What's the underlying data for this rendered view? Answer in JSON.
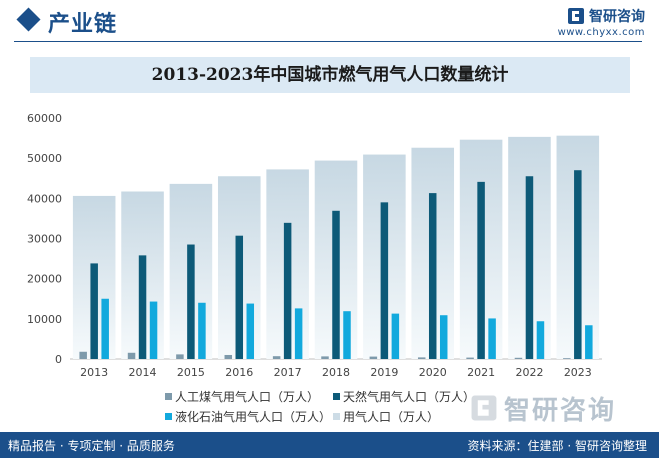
{
  "header": {
    "section_title": "产业链",
    "brand_name": "智研咨询",
    "brand_url": "www.chyxx.com",
    "logo_icon": "chyxx-logo-icon"
  },
  "watermark": {
    "text": "智研咨询"
  },
  "footer": {
    "left": "精品报告 · 专项定制 · 品质服务",
    "right": "资料来源：住建部 · 智研咨询整理"
  },
  "colors": {
    "brand": "#1b4f8a",
    "artificial_gas": "#7e9aab",
    "natural_gas": "#0d5a78",
    "lpg": "#12a9dd",
    "gas_population": "#cddce6"
  },
  "chart_data": {
    "type": "bar",
    "title": "2013-2023年中国城市燃气用气人口数量统计",
    "xlabel": "",
    "ylabel": "",
    "ylim": [
      0,
      60000
    ],
    "yticks": [
      0,
      10000,
      20000,
      30000,
      40000,
      50000,
      60000
    ],
    "categories": [
      "2013",
      "2014",
      "2015",
      "2016",
      "2017",
      "2018",
      "2019",
      "2020",
      "2021",
      "2022",
      "2023"
    ],
    "series": [
      {
        "name": "人工煤气用气人口（万人）",
        "color": "#7e9aab",
        "values": [
          1800,
          1550,
          1150,
          1000,
          700,
          650,
          600,
          400,
          350,
          300,
          200
        ]
      },
      {
        "name": "天然气用气人口（万人）",
        "color": "#0d5a78",
        "values": [
          23800,
          25800,
          28500,
          30700,
          33900,
          36900,
          39000,
          41300,
          44100,
          45500,
          47000
        ]
      },
      {
        "name": "液化石油气用气人口（万人）",
        "color": "#12a9dd",
        "values": [
          15000,
          14300,
          14000,
          13800,
          12600,
          11900,
          11300,
          10900,
          10100,
          9400,
          8400
        ]
      },
      {
        "name": "用气人口（万人）",
        "color": "#cddce6",
        "background": true,
        "values": [
          40600,
          41700,
          43600,
          45500,
          47200,
          49400,
          50900,
          52600,
          54600,
          55300,
          55600
        ]
      }
    ],
    "legend_position": "bottom"
  }
}
